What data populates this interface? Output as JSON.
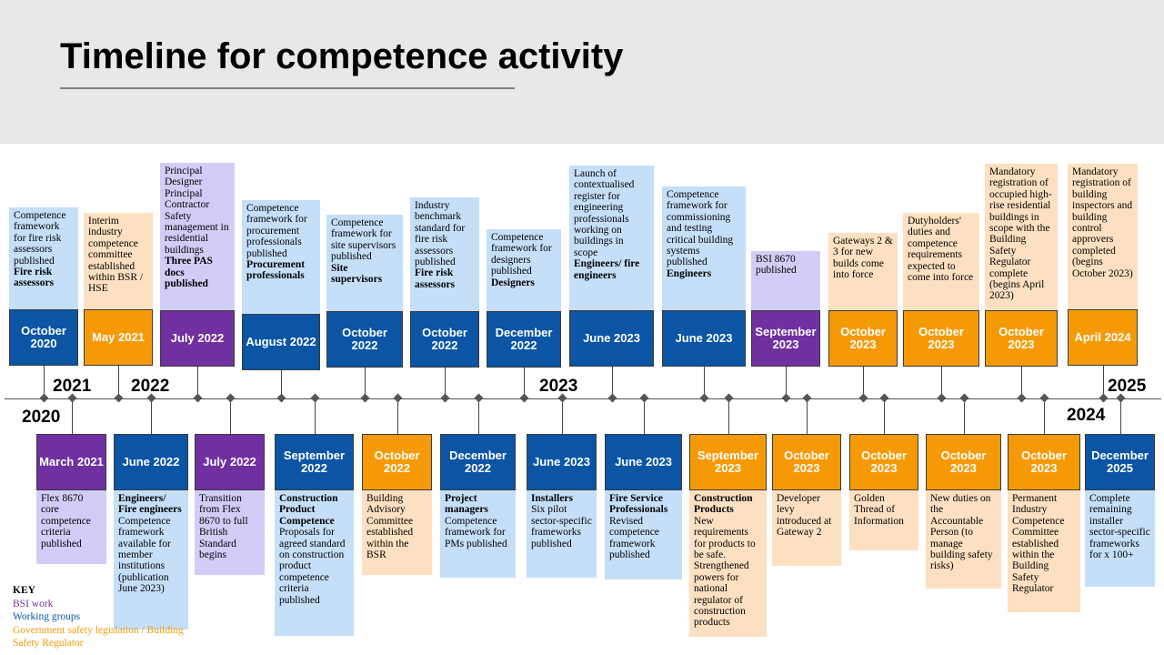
{
  "title": "Timeline for competence activity",
  "years": {
    "y2020": "2020",
    "y2021": "2021",
    "y2022": "2022",
    "y2023": "2023",
    "y2024": "2024",
    "y2025": "2025"
  },
  "colors": {
    "bsi": "#7030a0",
    "working_groups": "#0b55a4",
    "government": "#f59a06"
  },
  "above": [
    {
      "date": "October 2020",
      "type": "working_groups",
      "text": "Competence framework for fire risk assessors published",
      "bold": "Fire risk assessors"
    },
    {
      "date": "May 2021",
      "type": "government",
      "text": "Interim industry competence committee established within BSR / HSE",
      "bold": ""
    },
    {
      "date": "July  2022",
      "type": "bsi",
      "text": "Principal Designer Principal Contractor Safety management in residential buildings",
      "bold": "Three PAS docs published"
    },
    {
      "date": "August 2022",
      "type": "working_groups",
      "text": "Competence framework for procurement professionals published",
      "bold": "Procurement professionals"
    },
    {
      "date": "October 2022",
      "type": "working_groups",
      "text": "Competence framework for site supervisors published",
      "bold": "Site supervisors"
    },
    {
      "date": "October 2022",
      "type": "working_groups",
      "text": "Industry benchmark standard for fire risk assessors published",
      "bold": "Fire risk assessors"
    },
    {
      "date": "December 2022",
      "type": "working_groups",
      "text": "Competence framework for designers published",
      "bold": "Designers"
    },
    {
      "date": "June  2023",
      "type": "working_groups",
      "text": "Launch of contextualised register for engineering professionals working on buildings in scope",
      "bold": "Engineers/ fire engineers"
    },
    {
      "date": "June  2023",
      "type": "working_groups",
      "text": "Competence framework for commissioning and testing critical building systems published",
      "bold": "Engineers"
    },
    {
      "date": "September 2023",
      "type": "bsi",
      "text": "BSI 8670 published",
      "bold": ""
    },
    {
      "date": "October 2023",
      "type": "government",
      "text": "Gateways 2 & 3 for new builds come into force",
      "bold": ""
    },
    {
      "date": "October 2023",
      "type": "government",
      "text": "Dutyholders' duties and competence requirements expected to come into force",
      "bold": ""
    },
    {
      "date": "October 2023",
      "type": "government",
      "text": "Mandatory registration of occupied high-rise residential buildings in scope with the Building Safety Regulator complete (begins April 2023)",
      "bold": ""
    },
    {
      "date": "April 2024",
      "type": "government",
      "text": "Mandatory registration of building inspectors and building control approvers completed (begins October 2023)",
      "bold": ""
    }
  ],
  "below": [
    {
      "date": "March 2021",
      "type": "bsi",
      "text": "Flex 8670 core competence criteria published",
      "bold": ""
    },
    {
      "date": "June  2022",
      "type": "working_groups",
      "text": "Competence framework available for member institutions (publication June 2023)",
      "bold": "Engineers/ Fire engineers"
    },
    {
      "date": "July  2022",
      "type": "bsi",
      "text": "Transition from Flex 8670 to full British Standard begins",
      "bold": ""
    },
    {
      "date": "September 2022",
      "type": "working_groups",
      "text": "Proposals for agreed standard on construction product competence criteria published",
      "bold": "Construction Product Competence"
    },
    {
      "date": "October 2022",
      "type": "government",
      "text": "Building Advisory Committee established within the BSR",
      "bold": ""
    },
    {
      "date": "December 2022",
      "type": "working_groups",
      "text": "Competence framework for PMs published",
      "bold": "Project managers"
    },
    {
      "date": "June 2023",
      "type": "working_groups",
      "text": "Six pilot sector-specific frameworks published",
      "bold": "Installers"
    },
    {
      "date": "June  2023",
      "type": "working_groups",
      "text": "Revised competence framework published",
      "bold": "Fire Service Professionals"
    },
    {
      "date": "September 2023",
      "type": "government",
      "text": "New requirements for products to be safe. Strengthened powers for national regulator of construction products",
      "bold": "Construction Products"
    },
    {
      "date": "October 2023",
      "type": "government",
      "text": "Developer levy introduced at Gateway 2",
      "bold": ""
    },
    {
      "date": "October 2023",
      "type": "government",
      "text": "Golden Thread of Information",
      "bold": ""
    },
    {
      "date": "October 2023",
      "type": "government",
      "text": "New duties on the Accountable Person (to manage building safety risks)",
      "bold": ""
    },
    {
      "date": "October 2023",
      "type": "government",
      "text": "Permanent Industry Competence Committee established within the Building Safety Regulator",
      "bold": ""
    },
    {
      "date": "December 2025",
      "type": "working_groups",
      "text": "Complete remaining installer sector-specific frameworks for x 100+",
      "bold": ""
    }
  ],
  "key": {
    "heading": "KEY",
    "bsi": "BSI work",
    "working_groups": "Working groups",
    "government": "Government safety legislation / Building Safety Regulator"
  }
}
